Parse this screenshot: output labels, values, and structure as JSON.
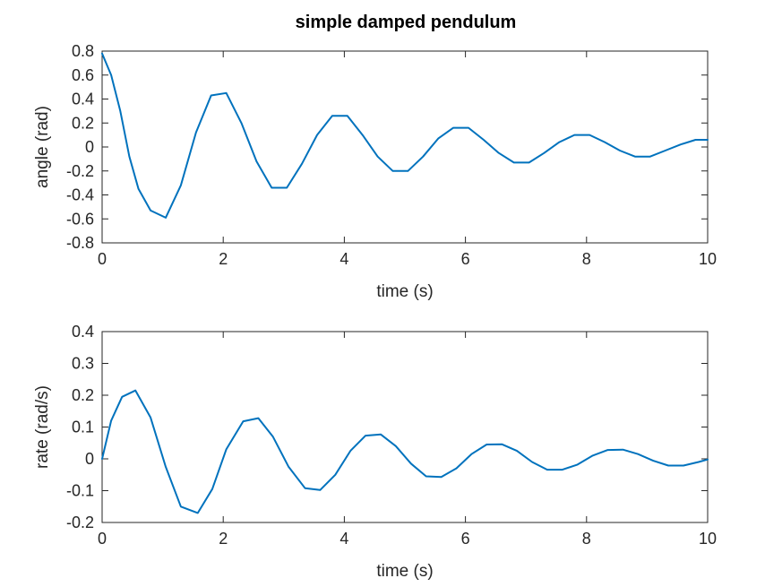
{
  "title": "simple damped pendulum",
  "chart_data": [
    {
      "type": "line",
      "xlabel": "time (s)",
      "ylabel": "angle (rad)",
      "xlim": [
        0,
        10
      ],
      "ylim": [
        -0.8,
        0.8
      ],
      "xticks": [
        0,
        2,
        4,
        6,
        8,
        10
      ],
      "yticks": [
        -0.8,
        -0.6,
        -0.4,
        -0.2,
        0,
        0.2,
        0.4,
        0.6,
        0.8
      ],
      "xtick_labels": [
        "0",
        "2",
        "4",
        "6",
        "8",
        "10"
      ],
      "ytick_labels": [
        "-0.8",
        "-0.6",
        "-0.4",
        "-0.2",
        "0",
        "0.2",
        "0.4",
        "0.6",
        "0.8"
      ],
      "grid": false,
      "line_color": "#0072bd",
      "series": [
        {
          "x": [
            0,
            0.15,
            0.3,
            0.45,
            0.6,
            0.8,
            1.05,
            1.3,
            1.55,
            1.8,
            2.05,
            2.3,
            2.55,
            2.8,
            3.05,
            3.3,
            3.55,
            3.8,
            4.05,
            4.3,
            4.55,
            4.8,
            5.05,
            5.3,
            5.55,
            5.8,
            6.05,
            6.3,
            6.55,
            6.8,
            7.05,
            7.3,
            7.55,
            7.8,
            8.05,
            8.3,
            8.55,
            8.8,
            9.05,
            9.3,
            9.55,
            9.8,
            10.0
          ],
          "y": [
            0.78,
            0.6,
            0.3,
            -0.08,
            -0.35,
            -0.53,
            -0.59,
            -0.32,
            0.12,
            0.43,
            0.45,
            0.2,
            -0.12,
            -0.34,
            -0.34,
            -0.14,
            0.1,
            0.26,
            0.26,
            0.1,
            -0.08,
            -0.2,
            -0.2,
            -0.08,
            0.07,
            0.16,
            0.16,
            0.06,
            -0.05,
            -0.13,
            -0.13,
            -0.05,
            0.04,
            0.1,
            0.1,
            0.04,
            -0.03,
            -0.08,
            -0.08,
            -0.03,
            0.02,
            0.06,
            0.06
          ]
        }
      ]
    },
    {
      "type": "line",
      "xlabel": "time (s)",
      "ylabel": "rate (rad/s)",
      "xlim": [
        0,
        10
      ],
      "ylim": [
        -0.2,
        0.4
      ],
      "xticks": [
        0,
        2,
        4,
        6,
        8,
        10
      ],
      "yticks": [
        -0.2,
        -0.1,
        0,
        0.1,
        0.2,
        0.3,
        0.4
      ],
      "xtick_labels": [
        "0",
        "2",
        "4",
        "6",
        "8",
        "10"
      ],
      "ytick_labels": [
        "-0.2",
        "-0.1",
        "0",
        "0.1",
        "0.2",
        "0.3",
        "0.4"
      ],
      "grid": false,
      "line_color": "#0072bd",
      "series": [
        {
          "x": [
            0,
            0.15,
            0.33,
            0.55,
            0.8,
            1.05,
            1.3,
            1.58,
            1.82,
            2.05,
            2.33,
            2.58,
            2.82,
            3.08,
            3.35,
            3.6,
            3.85,
            4.1,
            4.35,
            4.6,
            4.85,
            5.1,
            5.35,
            5.6,
            5.85,
            6.1,
            6.35,
            6.6,
            6.85,
            7.1,
            7.35,
            7.6,
            7.85,
            8.1,
            8.35,
            8.6,
            8.85,
            9.1,
            9.35,
            9.6,
            9.85,
            10.0
          ],
          "y": [
            0.0,
            0.12,
            0.195,
            0.215,
            0.13,
            -0.025,
            -0.15,
            -0.17,
            -0.095,
            0.03,
            0.118,
            0.128,
            0.07,
            -0.025,
            -0.092,
            -0.098,
            -0.05,
            0.025,
            0.073,
            0.077,
            0.04,
            -0.015,
            -0.055,
            -0.057,
            -0.03,
            0.015,
            0.045,
            0.046,
            0.025,
            -0.01,
            -0.034,
            -0.034,
            -0.018,
            0.01,
            0.028,
            0.029,
            0.015,
            -0.006,
            -0.021,
            -0.021,
            -0.01,
            -0.002
          ]
        }
      ]
    }
  ]
}
